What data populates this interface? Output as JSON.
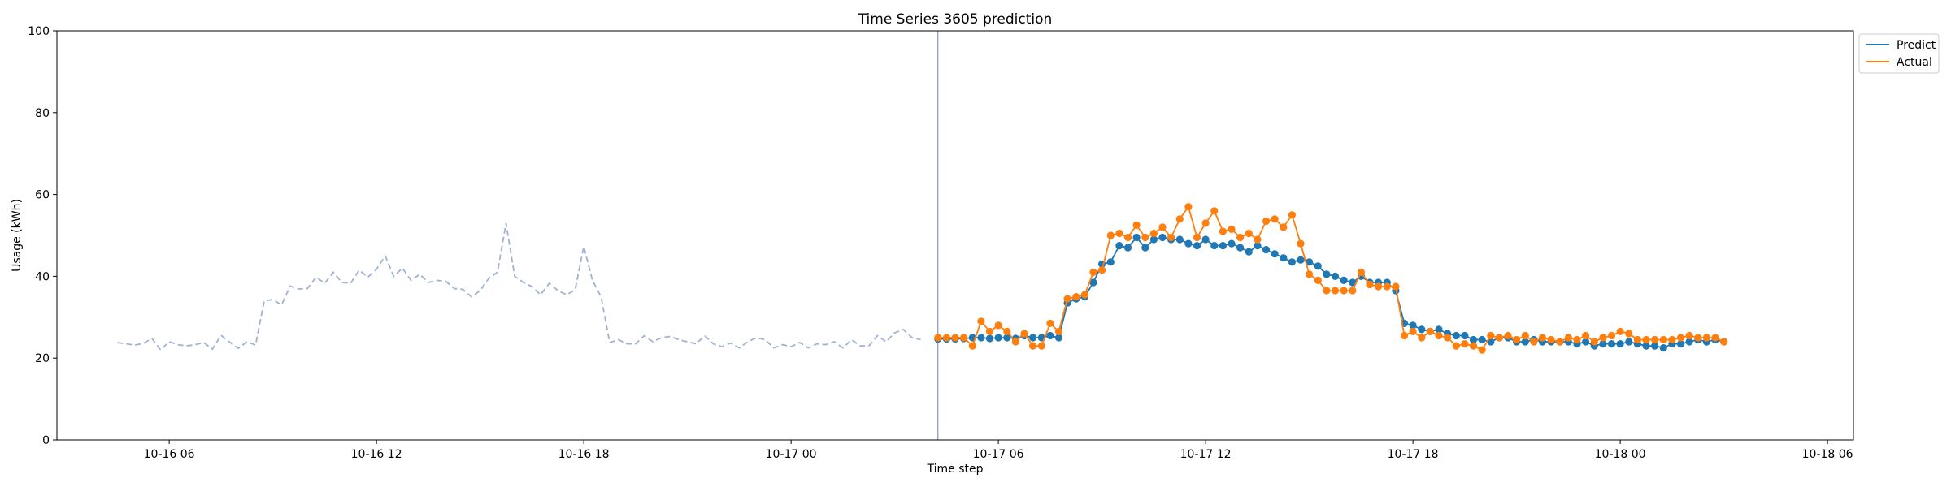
{
  "chart_data": {
    "type": "line",
    "title": "Time Series 3605 prediction",
    "xlabel": "Time step",
    "ylabel": "Usage (kWh)",
    "ylim": [
      0,
      100
    ],
    "yticks": [
      0,
      20,
      40,
      60,
      80,
      100
    ],
    "xlim": [
      "2025-10-16T02:45",
      "2025-10-18T06:45"
    ],
    "xticks": [
      {
        "t": "2025-10-16T06:00",
        "label": "10-16 06"
      },
      {
        "t": "2025-10-16T12:00",
        "label": "10-16 12"
      },
      {
        "t": "2025-10-16T18:00",
        "label": "10-16 18"
      },
      {
        "t": "2025-10-17T00:00",
        "label": "10-17 00"
      },
      {
        "t": "2025-10-17T06:00",
        "label": "10-17 06"
      },
      {
        "t": "2025-10-17T12:00",
        "label": "10-17 12"
      },
      {
        "t": "2025-10-17T18:00",
        "label": "10-17 18"
      },
      {
        "t": "2025-10-18T00:00",
        "label": "10-18 00"
      },
      {
        "t": "2025-10-18T06:00",
        "label": "10-18 06"
      }
    ],
    "forecast_start": "2025-10-17T04:15",
    "grid": false,
    "legend_position": "upper-right-outside",
    "history": {
      "start": "2025-10-16T04:30",
      "step_minutes": 15,
      "color": "#9fb3d1",
      "style": "dashed",
      "values": [
        23.8,
        23.5,
        23.2,
        23.6,
        24.8,
        22.0,
        24.0,
        23.3,
        23.0,
        23.3,
        23.8,
        22.2,
        25.6,
        23.9,
        22.4,
        24.0,
        23.2,
        34.0,
        34.3,
        33.0,
        37.6,
        36.9,
        37.0,
        39.8,
        38.3,
        41.0,
        38.5,
        38.3,
        41.5,
        39.8,
        41.7,
        45.0,
        40.0,
        42.0,
        39.0,
        40.5,
        38.5,
        39.0,
        38.8,
        37.0,
        36.8,
        35.0,
        36.5,
        39.5,
        41.0,
        53.0,
        40.0,
        38.5,
        37.5,
        35.5,
        38.3,
        36.5,
        35.5,
        36.7,
        47.3,
        39.0,
        35.0,
        23.8,
        24.5,
        23.5,
        23.5,
        25.5,
        24.0,
        25.0,
        25.3,
        24.5,
        24.0,
        23.5,
        25.5,
        23.5,
        22.8,
        23.7,
        22.5,
        24.0,
        25.0,
        24.5,
        22.5,
        23.3,
        22.8,
        23.8,
        22.5,
        23.5,
        23.3,
        24.0,
        22.5,
        24.5,
        23.0,
        23.0,
        25.5,
        24.0,
        26.2,
        27.0,
        25.0,
        24.5
      ]
    },
    "series_start": "2025-10-17T04:15",
    "step_minutes": 15,
    "series": [
      {
        "name": "Predict",
        "color": "#1f77b4",
        "values": [
          24.7,
          24.7,
          24.7,
          24.8,
          25.0,
          25.0,
          24.8,
          25.0,
          25.0,
          24.8,
          25.5,
          25.0,
          25.0,
          25.5,
          25.0,
          33.5,
          34.5,
          35.0,
          38.5,
          43.0,
          43.5,
          47.5,
          47.0,
          49.5,
          47.0,
          49.0,
          49.5,
          49.0,
          49.0,
          48.0,
          47.5,
          49.0,
          47.5,
          47.5,
          48.0,
          47.0,
          46.0,
          47.5,
          46.5,
          45.5,
          44.5,
          43.5,
          44.0,
          43.5,
          42.5,
          40.5,
          40.0,
          39.0,
          38.5,
          40.0,
          38.5,
          38.5,
          38.5,
          36.5,
          28.5,
          28.0,
          27.0,
          26.5,
          27.0,
          26.0,
          25.5,
          25.5,
          24.5,
          24.5,
          24.0,
          25.0,
          25.0,
          24.0,
          24.0,
          24.5,
          24.0,
          24.0,
          24.0,
          24.0,
          23.5,
          24.0,
          23.0,
          23.5,
          23.5,
          23.5,
          24.0,
          23.5,
          23.0,
          23.0,
          22.5,
          23.5,
          23.5,
          24.0,
          24.5,
          24.0,
          24.5,
          24.0
        ]
      },
      {
        "name": "Actual",
        "color": "#ff7f0e",
        "values": [
          25.0,
          25.0,
          25.0,
          25.0,
          23.0,
          29.0,
          26.5,
          28.0,
          26.5,
          24.0,
          26.0,
          23.0,
          23.0,
          28.5,
          26.5,
          34.5,
          35.0,
          35.5,
          41.0,
          41.5,
          50.0,
          50.5,
          49.5,
          52.5,
          49.5,
          50.5,
          52.0,
          49.5,
          54.0,
          57.0,
          49.5,
          53.0,
          56.0,
          51.0,
          51.5,
          49.5,
          50.5,
          49.0,
          53.5,
          54.0,
          52.0,
          55.0,
          48.0,
          40.5,
          39.0,
          36.5,
          36.5,
          36.5,
          36.5,
          41.0,
          38.0,
          37.5,
          37.5,
          37.5,
          25.5,
          26.5,
          25.0,
          26.5,
          25.5,
          25.0,
          23.0,
          23.5,
          23.0,
          22.0,
          25.5,
          25.0,
          25.5,
          24.5,
          25.5,
          24.0,
          25.0,
          24.5,
          24.0,
          25.0,
          24.5,
          25.5,
          24.0,
          25.0,
          25.5,
          26.5,
          26.0,
          24.5,
          24.5,
          24.5,
          24.5,
          24.5,
          25.0,
          25.5,
          25.0,
          25.0,
          25.0,
          24.0
        ]
      }
    ]
  }
}
